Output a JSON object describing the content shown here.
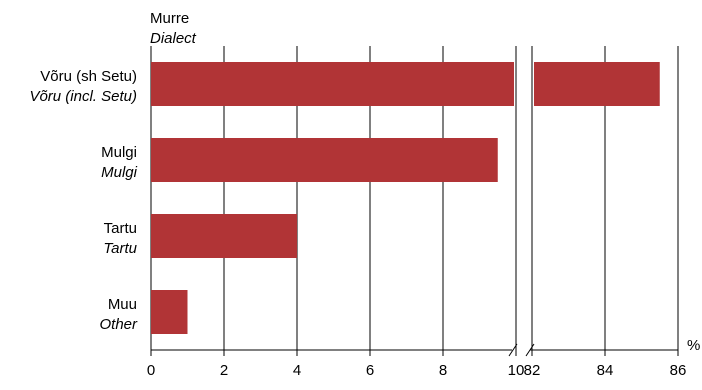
{
  "chart_data": {
    "type": "bar",
    "orientation": "horizontal",
    "axis_title": "Murre",
    "axis_title_en": "Dialect",
    "unit_label": "%",
    "categories": [
      {
        "label": "Võru  (sh Setu)",
        "label_en": "Võru (incl. Setu)"
      },
      {
        "label": "Mulgi",
        "label_en": "Mulgi"
      },
      {
        "label": "Tartu",
        "label_en": "Tartu"
      },
      {
        "label": "Muu",
        "label_en": "Other"
      }
    ],
    "values": [
      85.5,
      9.5,
      4.0,
      1.0
    ],
    "xlim_left": [
      0,
      10
    ],
    "xlim_right": [
      82,
      86
    ],
    "ticks_left": [
      "0",
      "2",
      "4",
      "6",
      "8",
      "10"
    ],
    "ticks_right": [
      "82",
      "84",
      "86"
    ],
    "axis_break": true,
    "grid": true,
    "bar_color": "#b13436"
  }
}
